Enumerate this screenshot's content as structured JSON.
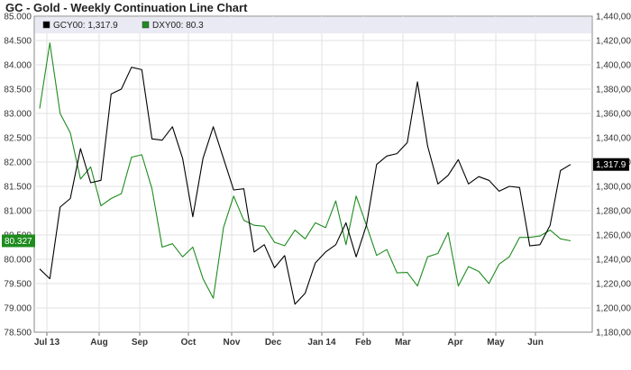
{
  "title": "GC - Gold - Weekly Continuation Line Chart",
  "colors": {
    "gold": "#000000",
    "dxy": "#1e8c1e",
    "grid": "#e2e2e2",
    "legend_bg": "#eaeaf4"
  },
  "chart_data": {
    "type": "line",
    "title": "GC - Gold - Weekly Continuation Line Chart",
    "grid": true,
    "legend_position": "top-left",
    "x_tick_labels": [
      "Jul 13",
      "Aug",
      "Sep",
      "Oct",
      "Nov",
      "Dec",
      "Jan 14",
      "Feb",
      "Mar",
      "Apr",
      "May",
      "Jun"
    ],
    "left_axis": {
      "ylim": [
        78.5,
        85.0
      ],
      "ticks": [
        "78.500",
        "79.000",
        "79.500",
        "80.000",
        "80.500",
        "81.000",
        "81.500",
        "82.000",
        "82.500",
        "83.000",
        "83.500",
        "84.000",
        "84.500",
        "85.000"
      ]
    },
    "right_axis": {
      "ylim": [
        1180,
        1440
      ],
      "ticks": [
        "1,180,000",
        "1,200,000",
        "1,220,000",
        "1,240,000",
        "1,260,000",
        "1,280,000",
        "1,300,000",
        "1,320,000",
        "1,340,000",
        "1,360,000",
        "1,380,000",
        "1,400,000",
        "1,420,000",
        "1,440,000"
      ]
    },
    "series": [
      {
        "name": "GCY00: 1,317.9",
        "last_label": "1,317.9",
        "axis": "right",
        "color": "#000000",
        "values": [
          1232,
          1224,
          1283,
          1290,
          1331,
          1303,
          1305,
          1376,
          1380,
          1398,
          1396,
          1339,
          1338,
          1349,
          1323,
          1275,
          1323,
          1349,
          1323,
          1297,
          1298,
          1246,
          1252,
          1233,
          1243,
          1203,
          1212,
          1237,
          1246,
          1252,
          1270,
          1242,
          1268,
          1318,
          1325,
          1327,
          1336,
          1386,
          1333,
          1302,
          1309,
          1322,
          1302,
          1308,
          1305,
          1296,
          1300,
          1299,
          1251,
          1252,
          1268,
          1313,
          1318
        ]
      },
      {
        "name": "DXY00: 80.3",
        "last_label": "80.327",
        "axis": "left",
        "color": "#1e8c1e",
        "values": [
          83.1,
          84.45,
          83.0,
          82.6,
          81.65,
          81.9,
          81.1,
          81.25,
          81.35,
          82.1,
          82.15,
          81.45,
          80.25,
          80.32,
          80.05,
          80.25,
          79.6,
          79.2,
          80.65,
          81.3,
          80.8,
          80.7,
          80.68,
          80.35,
          80.28,
          80.6,
          80.42,
          80.75,
          80.65,
          81.2,
          80.3,
          81.3,
          80.7,
          80.08,
          80.2,
          79.72,
          79.73,
          79.45,
          80.05,
          80.12,
          80.55,
          79.45,
          79.85,
          79.75,
          79.5,
          79.9,
          80.05,
          80.45,
          80.45,
          80.48,
          80.6,
          80.42,
          80.38
        ]
      }
    ]
  }
}
